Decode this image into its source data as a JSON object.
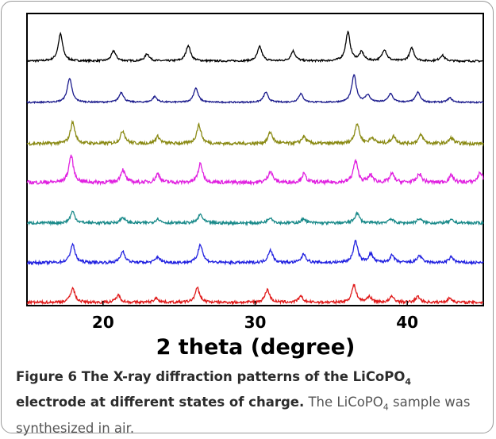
{
  "chart_data": {
    "type": "line",
    "xlabel": "2 theta (degree)",
    "ylabel": "",
    "xlim": [
      15,
      45
    ],
    "x_ticks": [
      "20",
      "30",
      "40"
    ],
    "grid": false,
    "legend": "none",
    "series": [
      {
        "color": "#000000",
        "peaks": [
          [
            17.2,
            0.95
          ],
          [
            20.7,
            0.35
          ],
          [
            22.9,
            0.25
          ],
          [
            25.6,
            0.55
          ],
          [
            30.3,
            0.5
          ],
          [
            32.5,
            0.35
          ],
          [
            36.1,
            1.0
          ],
          [
            37.0,
            0.3
          ],
          [
            38.5,
            0.4
          ],
          [
            40.3,
            0.45
          ],
          [
            42.3,
            0.2
          ]
        ],
        "noise": 0.04
      },
      {
        "color": "#1a1a8c",
        "peaks": [
          [
            17.8,
            0.85
          ],
          [
            21.2,
            0.35
          ],
          [
            23.4,
            0.2
          ],
          [
            26.1,
            0.5
          ],
          [
            30.7,
            0.35
          ],
          [
            33.0,
            0.3
          ],
          [
            36.5,
            0.95
          ],
          [
            37.4,
            0.25
          ],
          [
            38.9,
            0.3
          ],
          [
            40.7,
            0.35
          ],
          [
            42.8,
            0.15
          ]
        ],
        "noise": 0.03
      },
      {
        "color": "#8a8a14",
        "peaks": [
          [
            18.0,
            0.75
          ],
          [
            21.3,
            0.45
          ],
          [
            23.6,
            0.25
          ],
          [
            26.3,
            0.65
          ],
          [
            31.0,
            0.4
          ],
          [
            33.2,
            0.25
          ],
          [
            36.7,
            0.7
          ],
          [
            37.7,
            0.2
          ],
          [
            39.1,
            0.25
          ],
          [
            40.9,
            0.3
          ],
          [
            42.9,
            0.2
          ]
        ],
        "noise": 0.07
      },
      {
        "color": "#e020e0",
        "peaks": [
          [
            17.9,
            0.95
          ],
          [
            21.3,
            0.45
          ],
          [
            23.6,
            0.3
          ],
          [
            26.4,
            0.65
          ],
          [
            31.0,
            0.4
          ],
          [
            33.2,
            0.3
          ],
          [
            36.6,
            0.75
          ],
          [
            37.6,
            0.25
          ],
          [
            39.0,
            0.3
          ],
          [
            40.8,
            0.3
          ],
          [
            42.9,
            0.25
          ],
          [
            44.8,
            0.35
          ]
        ],
        "noise": 0.08
      },
      {
        "color": "#1a8a8a",
        "peaks": [
          [
            18.0,
            0.4
          ],
          [
            21.3,
            0.2
          ],
          [
            23.6,
            0.15
          ],
          [
            26.4,
            0.3
          ],
          [
            31.0,
            0.2
          ],
          [
            33.2,
            0.15
          ],
          [
            36.7,
            0.35
          ],
          [
            38.9,
            0.15
          ],
          [
            40.8,
            0.15
          ],
          [
            42.9,
            0.1
          ]
        ],
        "noise": 0.06
      },
      {
        "color": "#2020e0",
        "peaks": [
          [
            18.0,
            0.65
          ],
          [
            21.3,
            0.4
          ],
          [
            23.6,
            0.2
          ],
          [
            26.4,
            0.65
          ],
          [
            31.0,
            0.45
          ],
          [
            33.2,
            0.3
          ],
          [
            36.6,
            0.75
          ],
          [
            37.6,
            0.3
          ],
          [
            39.0,
            0.25
          ],
          [
            40.8,
            0.25
          ],
          [
            42.9,
            0.2
          ]
        ],
        "noise": 0.06
      },
      {
        "color": "#e01a1a",
        "peaks": [
          [
            18.0,
            0.5
          ],
          [
            21.0,
            0.25
          ],
          [
            23.5,
            0.15
          ],
          [
            26.2,
            0.5
          ],
          [
            30.8,
            0.45
          ],
          [
            33.0,
            0.2
          ],
          [
            36.5,
            0.6
          ],
          [
            37.5,
            0.2
          ],
          [
            39.0,
            0.2
          ],
          [
            40.7,
            0.2
          ],
          [
            42.8,
            0.15
          ]
        ],
        "noise": 0.06
      }
    ]
  },
  "caption": {
    "lead_1": "Figure 6 The X-ray diffraction patterns of the LiCoPO",
    "lead_sub": "4",
    "lead_2": " electrode at different states of charge.",
    "text_1": " The LiCoPO",
    "text_sub": "4",
    "text_2": " sample was synthesized in air."
  }
}
